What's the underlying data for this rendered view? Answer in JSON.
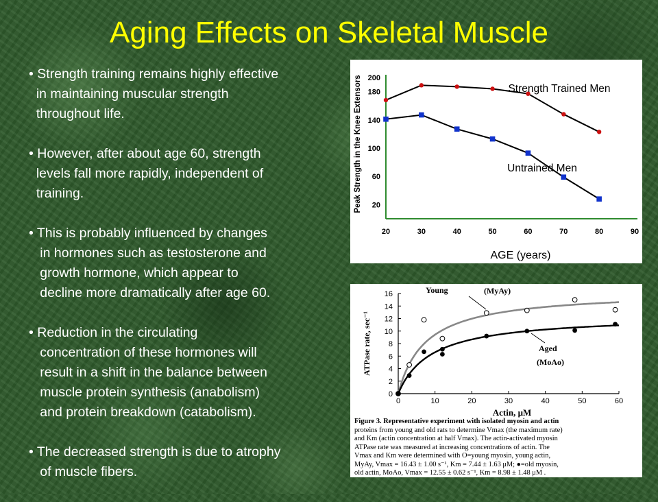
{
  "slide": {
    "title": "Aging Effects on Skeletal Muscle",
    "bullets": [
      [
        "• Strength training remains highly effective",
        "  in maintaining muscular strength",
        "  throughout life."
      ],
      [
        "• However, after about age 60, strength",
        "  levels fall more rapidly, independent of",
        "  training."
      ],
      [
        "• This is probably influenced by changes",
        "   in hormones such as testosterone and",
        "   growth hormone, which appear to",
        "   decline more dramatically after age 60."
      ],
      [
        "• Reduction in the circulating",
        "   concentration of these hormones will",
        "   result in a shift in the balance between",
        "   muscle protein synthesis (anabolism)",
        "   and protein breakdown (catabolism)."
      ],
      [
        "• The decreased strength is due to atrophy",
        "   of muscle fibers."
      ]
    ],
    "colors": {
      "title": "#ffff00",
      "text": "#ffffff",
      "background": "#2f5a2c"
    }
  },
  "chart_data": [
    {
      "type": "line",
      "title": "",
      "xlabel": "AGE (years)",
      "ylabel": "Peak Strength in the Knee Extensors",
      "xlim": [
        20,
        90
      ],
      "ylim": [
        0,
        200
      ],
      "xticks": [
        20,
        30,
        40,
        50,
        60,
        70,
        80,
        90
      ],
      "yticks": [
        20,
        60,
        100,
        140,
        180,
        200
      ],
      "grid": false,
      "axis_color": "#2e8b2e",
      "series": [
        {
          "name": "Strength Trained Men",
          "marker": "circle",
          "color": "#cc1111",
          "x": [
            20,
            30,
            40,
            50,
            60,
            70,
            80
          ],
          "y": [
            168,
            189,
            187,
            184,
            177,
            148,
            123
          ]
        },
        {
          "name": "Untrained Men",
          "marker": "square",
          "color": "#1133cc",
          "x": [
            20,
            30,
            40,
            50,
            60,
            70,
            80
          ],
          "y": [
            141,
            147,
            127,
            113,
            93,
            59,
            28
          ]
        }
      ]
    },
    {
      "type": "scatter",
      "title": "",
      "xlabel": "Actin, μM",
      "ylabel": "ATPase rate, sec⁻¹",
      "xlim": [
        0,
        60
      ],
      "ylim": [
        0,
        16
      ],
      "xticks": [
        0,
        10,
        20,
        30,
        40,
        50,
        60
      ],
      "yticks": [
        0,
        2,
        4,
        6,
        8,
        10,
        12,
        14,
        16
      ],
      "grid": false,
      "series": [
        {
          "name": "Young",
          "curve_label": "(MyAy)",
          "marker": "open-circle",
          "curve_color": "#888888",
          "vmax": 16.43,
          "km": 7.44,
          "x": [
            0,
            3,
            7,
            12,
            24,
            35,
            48,
            59
          ],
          "y": [
            0,
            4.6,
            11.8,
            8.8,
            12.9,
            13.3,
            15.0,
            13.4
          ]
        },
        {
          "name": "Aged",
          "curve_label": "(MoAo)",
          "marker": "filled-circle",
          "curve_color": "#000000",
          "vmax": 12.55,
          "km": 8.98,
          "x": [
            0,
            3,
            7,
            12,
            12,
            24,
            35,
            48,
            59
          ],
          "y": [
            0,
            2.9,
            6.7,
            6.3,
            7.1,
            9.2,
            10.0,
            10.1,
            11.1
          ]
        }
      ],
      "caption": [
        "Figure 3. Representative experiment with isolated myosin and actin",
        "proteins from young and old rats to determine Vmax (the maximum rate)",
        "and Km (actin concentration at half Vmax). The actin-activated myosin",
        "ATPase rate was measured at increasing concentrations of actin. The",
        "Vmax and Km were determined with O=young myosin, young actin,",
        "MyAy, Vmax = 16.43 ± 1.00 s⁻¹, Km = 7.44 ± 1.63 μM; ●=old myosin,",
        "old actin, MoAo, Vmax = 12.55 ± 0.62 s⁻¹, Km = 8.98 ± 1.48 μM ."
      ]
    }
  ]
}
